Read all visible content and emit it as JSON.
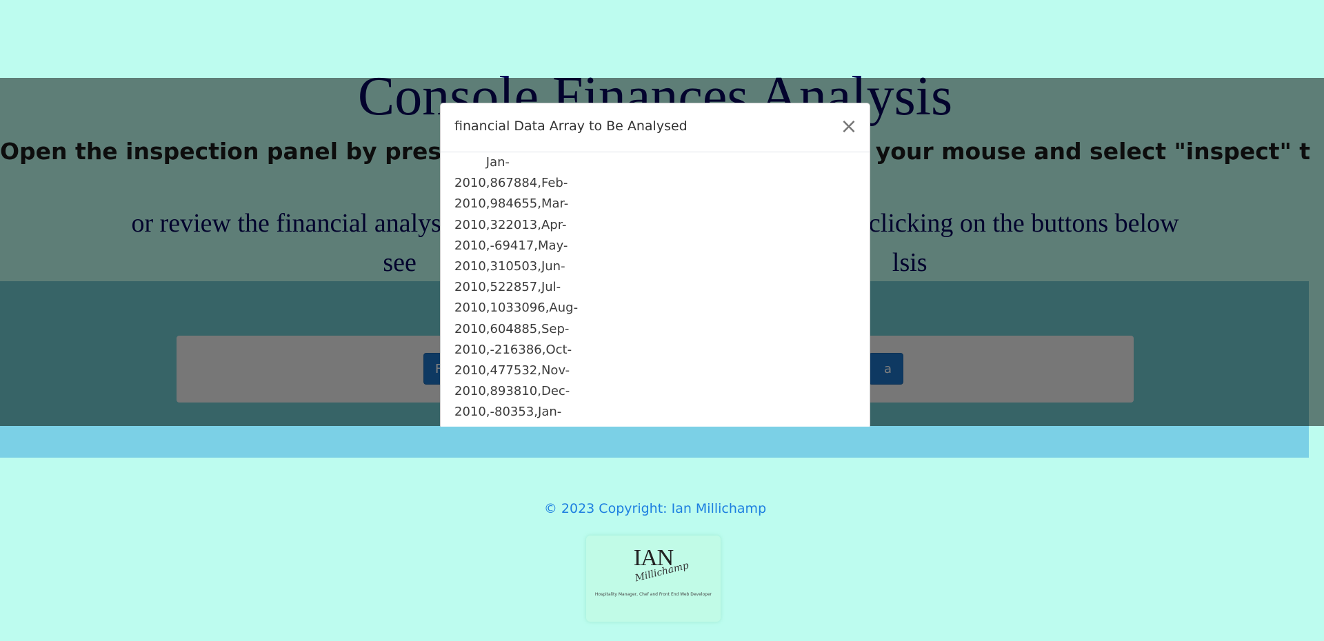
{
  "header": {
    "title": "Console Finances Analysis",
    "instruction": "Open the inspection panel by press",
    "instruction_end": "your mouse and select \"inspect\" to",
    "subline_left": "or review the financial analys",
    "subline_right": "clicking on the buttons below",
    "subline2_left": "see",
    "subline2_right": "lsis"
  },
  "buttons": {
    "left_label": "F",
    "right_label": "a"
  },
  "modal": {
    "title": "financial Data Array to Be Analysed",
    "close_symbol": "×",
    "data_text": "        Jan-2010,867884,Feb-2010,984655,Mar-2010,322013,Apr-2010,-69417,May-2010,310503,Jun-2010,522857,Jul-2010,1033096,Aug-2010,604885,Sep-2010,-216386,Oct-2010,477532,Nov-2010,893810,Dec-2010,-80353,Jan-"
  },
  "footer": {
    "copyright": "© 2023 Copyright: Ian Millichamp",
    "logo_main": "IAN",
    "logo_script": "Millichamp",
    "logo_tagline": "Hospitality Manager, Chef and Front End Web Developer"
  },
  "colors": {
    "page_background": "#bdfcef",
    "title_color": "#06065a",
    "button_blue": "#1d73c4",
    "footer_link": "#1d7fe0"
  }
}
